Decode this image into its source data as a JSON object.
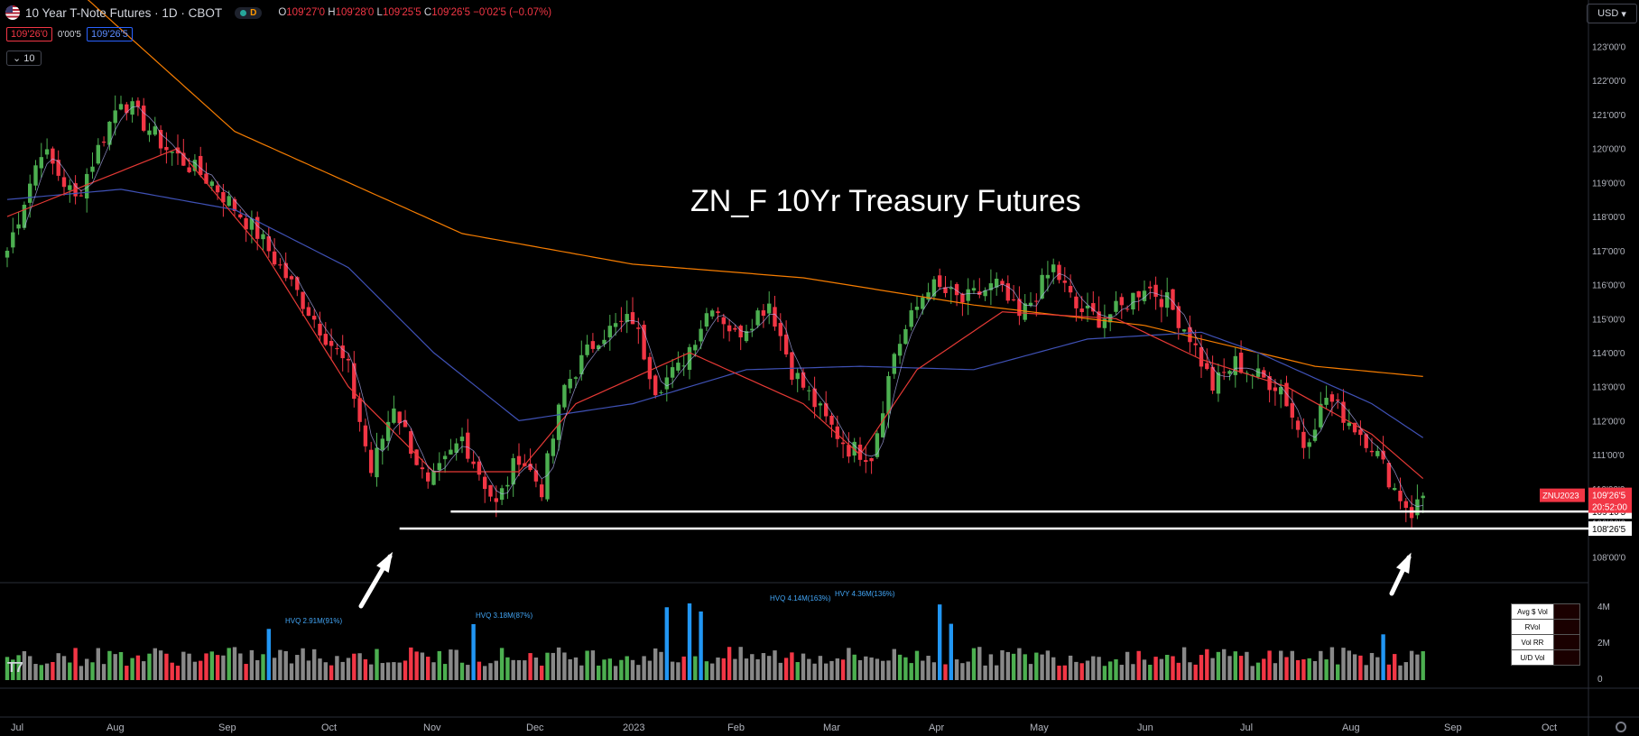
{
  "header": {
    "symbol": "10 Year T-Note Futures · 1D · CBOT",
    "interval_badge": "D",
    "ohlc": {
      "O": "109'27'0",
      "H": "109'28'0",
      "L": "109'25'5",
      "C": "109'26'5",
      "change": "−0'02'5 (−0.07%)"
    },
    "bid": "109'26'0",
    "spread": "0'00'5",
    "ask": "109'26'5",
    "collapse_label": "10",
    "currency": "USD"
  },
  "colors": {
    "up": "#4caf50",
    "down": "#f23645",
    "ma_fast": "#b8b8ff",
    "ma_red": "#e53935",
    "ma_blue": "#3f51b5",
    "ma_orange": "#f57c00",
    "vol_gray": "#888888",
    "vol_hv": "#2196f3",
    "level_line": "#ffffff"
  },
  "chart_data": {
    "type": "candlestick",
    "title": "ZN_F 10Yr Treasury Futures",
    "price_axis": {
      "unit": "price",
      "range": [
        107.4,
        123.7
      ],
      "ticks": [
        "108'00'0",
        "109'00'0",
        "110'00'0",
        "111'00'0",
        "112'00'0",
        "113'00'0",
        "114'00'0",
        "115'00'0",
        "116'00'0",
        "117'00'0",
        "118'00'0",
        "119'00'0",
        "120'00'0",
        "121'00'0",
        "122'00'0",
        "123'00'0"
      ]
    },
    "time_axis": {
      "ticks": [
        "Jul",
        "Aug",
        "Sep",
        "Oct",
        "Nov",
        "Dec",
        "2023",
        "Feb",
        "Mar",
        "Apr",
        "May",
        "Jun",
        "Jul",
        "Aug",
        "Sep",
        "Oct"
      ]
    },
    "close_path": [
      [
        0,
        117.0
      ],
      [
        6,
        120.0
      ],
      [
        12,
        118.5
      ],
      [
        20,
        121.5
      ],
      [
        28,
        120.0
      ],
      [
        36,
        119.0
      ],
      [
        44,
        117.5
      ],
      [
        52,
        115.5
      ],
      [
        60,
        113.5
      ],
      [
        64,
        110.5
      ],
      [
        68,
        112.5
      ],
      [
        74,
        110.0
      ],
      [
        80,
        111.5
      ],
      [
        86,
        109.5
      ],
      [
        90,
        111.0
      ],
      [
        94,
        110.0
      ],
      [
        98,
        113.0
      ],
      [
        104,
        114.5
      ],
      [
        110,
        115.0
      ],
      [
        114,
        113.0
      ],
      [
        118,
        113.5
      ],
      [
        124,
        115.5
      ],
      [
        128,
        114.5
      ],
      [
        134,
        115.5
      ],
      [
        138,
        113.5
      ],
      [
        144,
        112.0
      ],
      [
        148,
        111.2
      ],
      [
        152,
        111.0
      ],
      [
        156,
        114.0
      ],
      [
        162,
        116.0
      ],
      [
        168,
        115.5
      ],
      [
        174,
        116.0
      ],
      [
        178,
        115.0
      ],
      [
        184,
        116.5
      ],
      [
        188,
        115.3
      ],
      [
        192,
        115.0
      ],
      [
        196,
        115.3
      ],
      [
        200,
        116.0
      ],
      [
        204,
        115.5
      ],
      [
        208,
        114.5
      ],
      [
        212,
        113.0
      ],
      [
        216,
        113.7
      ],
      [
        220,
        113.3
      ],
      [
        224,
        113.0
      ],
      [
        228,
        111.3
      ],
      [
        232,
        112.7
      ],
      [
        236,
        112.0
      ],
      [
        240,
        111.3
      ],
      [
        244,
        110.0
      ],
      [
        247,
        109.3
      ],
      [
        249,
        109.8
      ]
    ],
    "moving_averages": [
      {
        "color_key": "ma_orange",
        "path": [
          [
            10,
            125
          ],
          [
            40,
            120.5
          ],
          [
            80,
            117.5
          ],
          [
            110,
            116.6
          ],
          [
            140,
            116.2
          ],
          [
            170,
            115.4
          ],
          [
            200,
            114.8
          ],
          [
            230,
            113.6
          ],
          [
            249,
            113.3
          ]
        ]
      },
      {
        "color_key": "ma_blue",
        "path": [
          [
            0,
            118.5
          ],
          [
            20,
            118.8
          ],
          [
            40,
            118.2
          ],
          [
            60,
            116.5
          ],
          [
            75,
            114.0
          ],
          [
            90,
            112.0
          ],
          [
            110,
            112.5
          ],
          [
            130,
            113.5
          ],
          [
            150,
            113.6
          ],
          [
            170,
            113.5
          ],
          [
            190,
            114.4
          ],
          [
            210,
            114.6
          ],
          [
            220,
            114.0
          ],
          [
            240,
            112.5
          ],
          [
            249,
            111.5
          ]
        ]
      },
      {
        "color_key": "ma_red",
        "path": [
          [
            0,
            118.0
          ],
          [
            30,
            120.0
          ],
          [
            45,
            117.0
          ],
          [
            60,
            113.0
          ],
          [
            75,
            110.5
          ],
          [
            90,
            110.5
          ],
          [
            100,
            112.5
          ],
          [
            120,
            114.0
          ],
          [
            140,
            112.5
          ],
          [
            150,
            111.0
          ],
          [
            160,
            113.5
          ],
          [
            175,
            115.2
          ],
          [
            195,
            115.0
          ],
          [
            210,
            113.8
          ],
          [
            225,
            113.0
          ],
          [
            240,
            111.6
          ],
          [
            249,
            110.3
          ]
        ]
      }
    ],
    "horizontal_levels": [
      {
        "value": 109.33,
        "label": "109'10'5",
        "from_bar": 78
      },
      {
        "value": 108.83,
        "label": "108'26'5",
        "from_bar": 69
      }
    ],
    "price_labels": {
      "symbol_tag": "ZNU2023",
      "last": "109'26'5",
      "countdown": "20:52:00"
    },
    "volume": {
      "axis_ticks": [
        "4M",
        "2M",
        "0"
      ],
      "annotations": [
        "HVQ 2.91M(91%)",
        "HVQ 3.18M(87%)",
        "HVQ 4.14M(163%)",
        "HVY 4.36M(136%)"
      ]
    },
    "stats_table": {
      "rows": [
        "Avg $ Vol",
        "RVol",
        "Vol RR",
        "U/D Vol"
      ]
    }
  }
}
